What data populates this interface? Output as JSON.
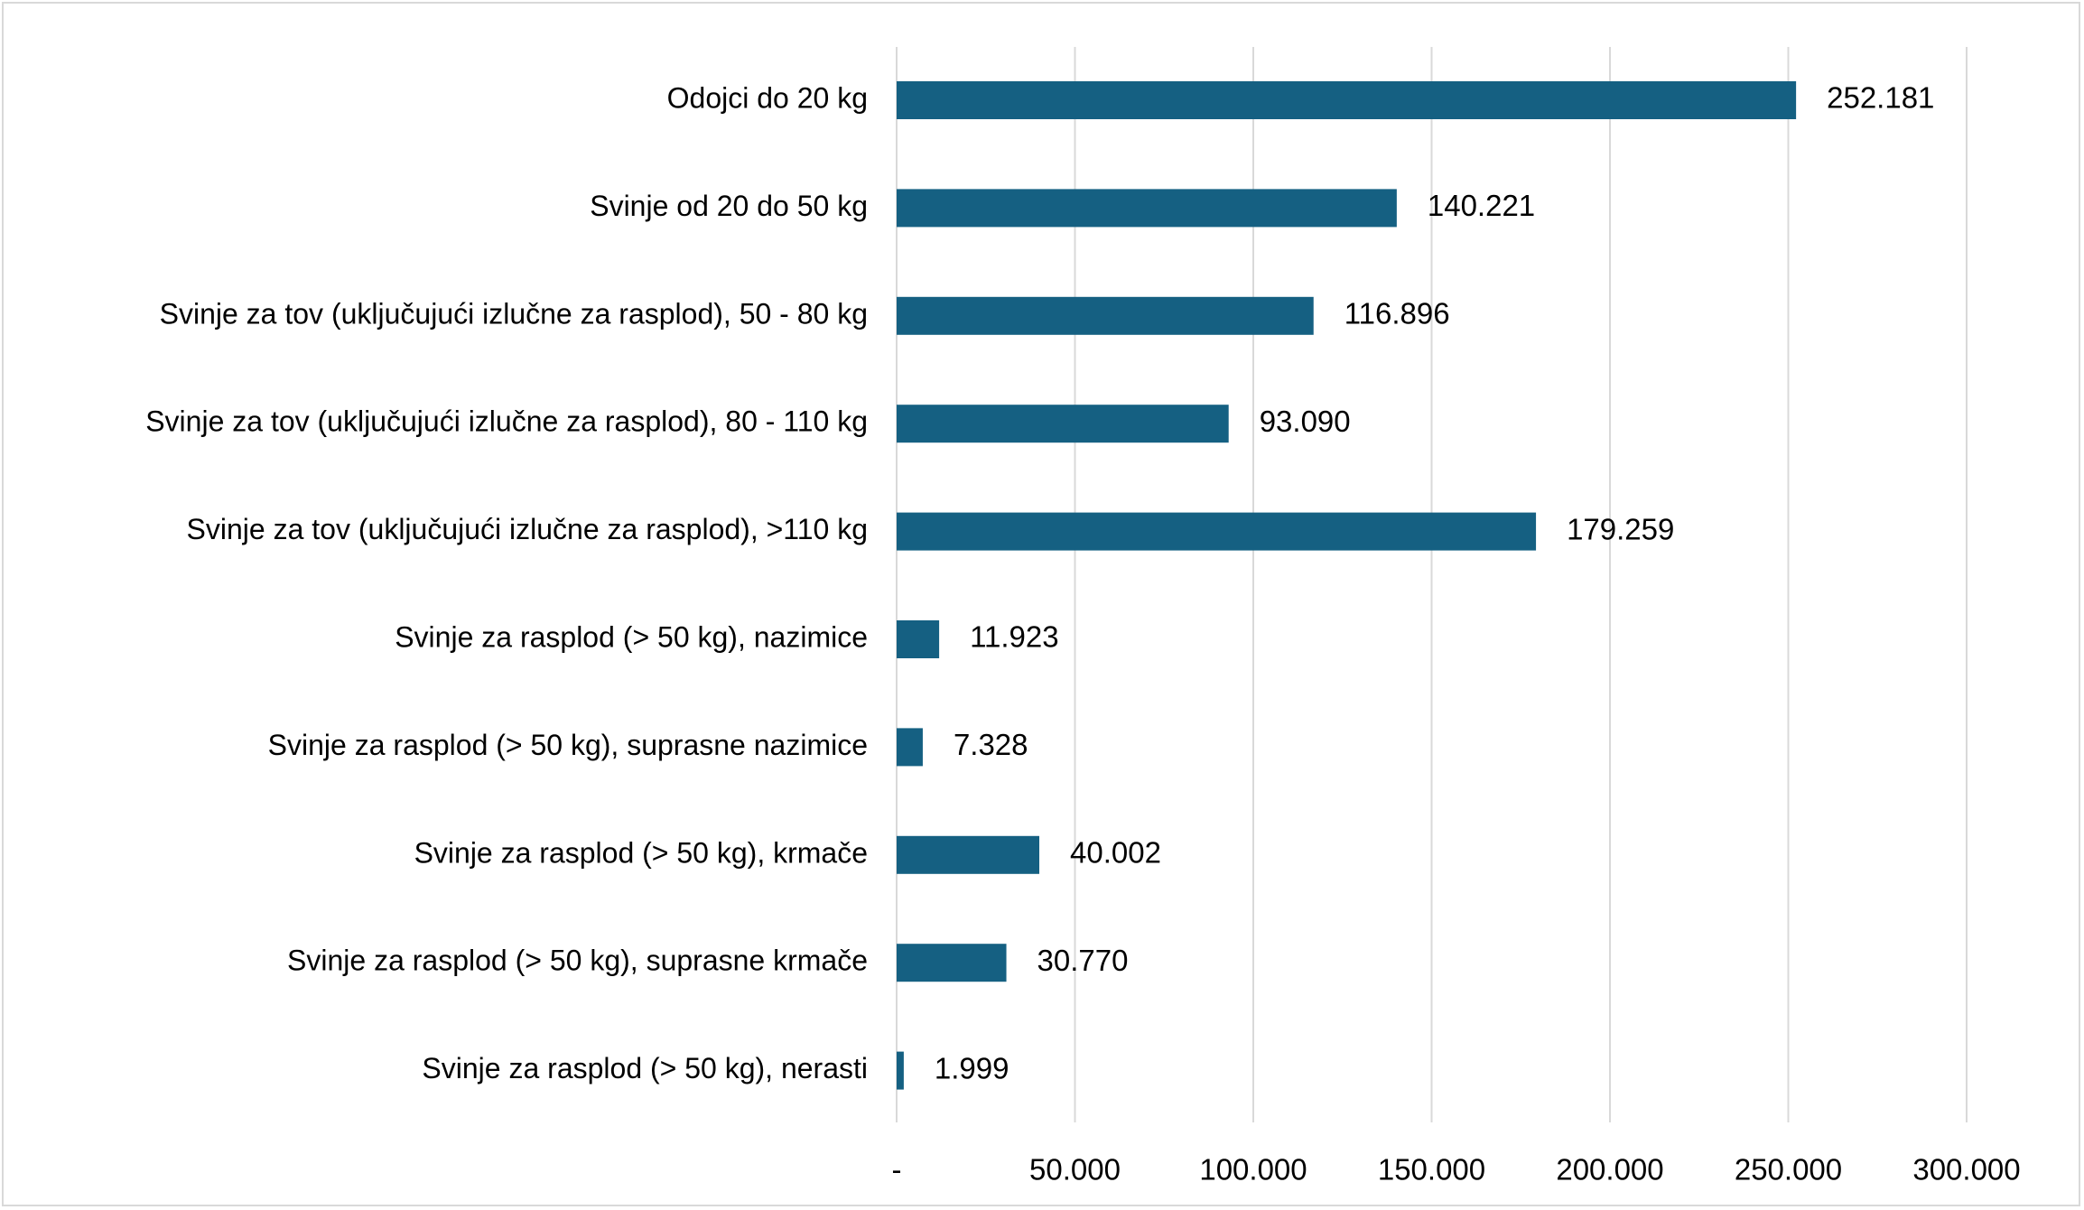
{
  "chart_data": {
    "type": "bar",
    "orientation": "horizontal",
    "title": "",
    "xlabel": "",
    "ylabel": "",
    "categories": [
      "Odojci do 20 kg",
      "Svinje od 20 do 50 kg",
      "Svinje za tov (uključujući izlučne za rasplod), 50 - 80 kg",
      "Svinje za tov (uključujući izlučne za rasplod), 80  - 110 kg",
      "Svinje za tov (uključujući izlučne za rasplod),  >110 kg",
      "Svinje za rasplod (> 50 kg), nazimice",
      "Svinje za rasplod (> 50 kg), suprasne nazimice",
      "Svinje za rasplod (> 50 kg), krmače",
      "Svinje za rasplod (> 50 kg), suprasne krmače",
      "Svinje za rasplod (> 50 kg), nerasti"
    ],
    "values": [
      252181,
      140221,
      116896,
      93090,
      179259,
      11923,
      7328,
      40002,
      30770,
      1999
    ],
    "data_labels": [
      "252.181",
      "140.221",
      "116.896",
      "93.090",
      "179.259",
      "11.923",
      "7.328",
      "40.002",
      "30.770",
      "1.999"
    ],
    "xlim": [
      0,
      300000
    ],
    "x_ticks": [
      0,
      50000,
      100000,
      150000,
      200000,
      250000,
      300000
    ],
    "x_tick_labels": [
      "-",
      "50.000",
      "100.000",
      "150.000",
      "200.000",
      "250.000",
      "300.000"
    ],
    "grid": "vertical",
    "legend": "none",
    "colors": {
      "bar": "#156082",
      "grid": "#d9d9d9",
      "border": "#d9d9d9",
      "text": "#000000"
    }
  }
}
